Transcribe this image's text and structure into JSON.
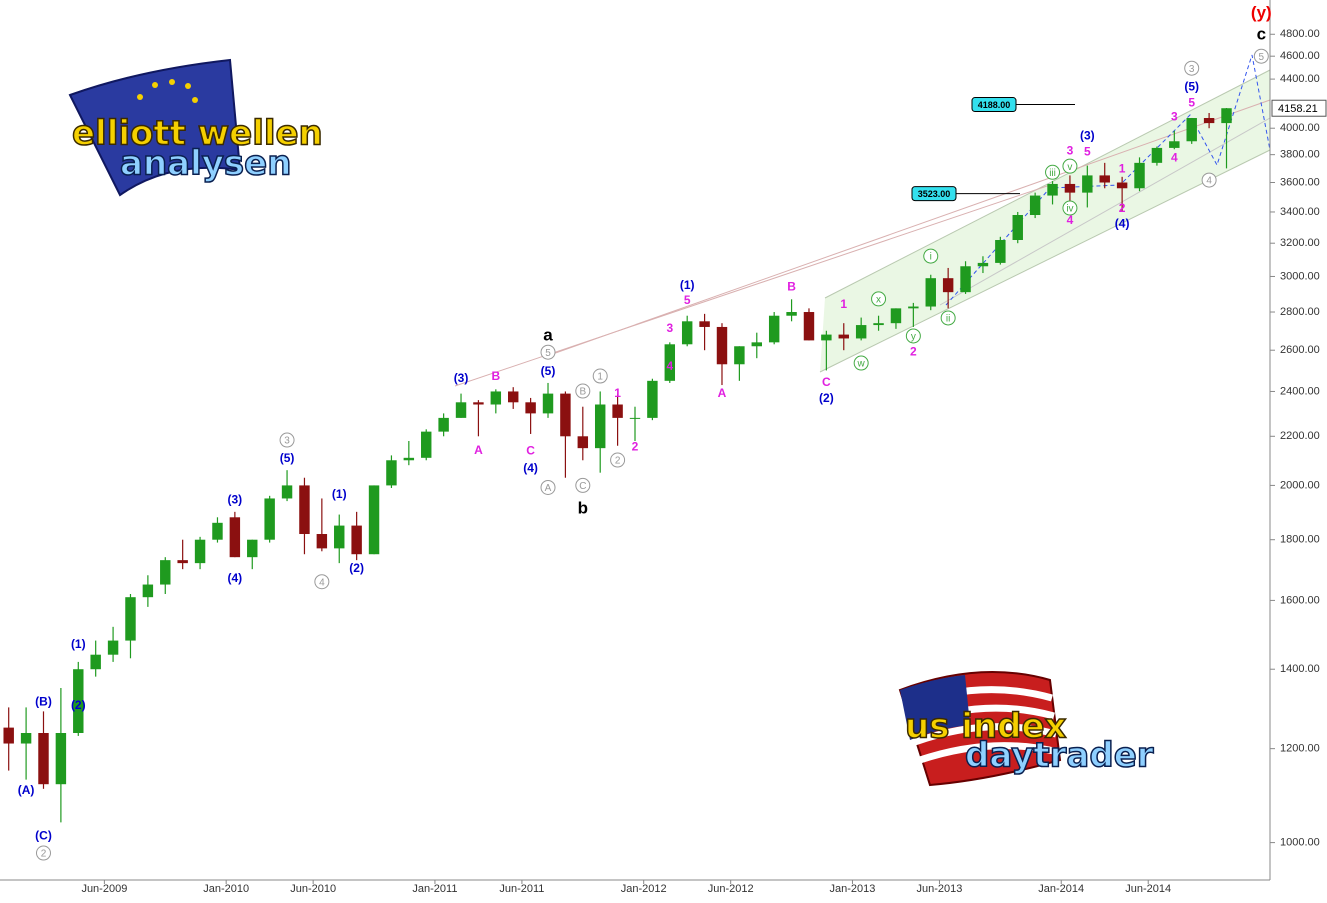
{
  "chart_data": {
    "type": "candlestick",
    "log_scale": true,
    "up_color": "#1f9a1f",
    "down_color": "#8b1010",
    "xlim": [
      "2008-12",
      "2015-01"
    ],
    "ylim": [
      930,
      5130
    ],
    "xticks": [
      {
        "value": "2009-06",
        "label": "Jun-2009"
      },
      {
        "value": "2010-01",
        "label": "Jan-2010"
      },
      {
        "value": "2010-06",
        "label": "Jun-2010"
      },
      {
        "value": "2011-01",
        "label": "Jan-2011"
      },
      {
        "value": "2011-06",
        "label": "Jun-2011"
      },
      {
        "value": "2012-01",
        "label": "Jan-2012"
      },
      {
        "value": "2012-06",
        "label": "Jun-2012"
      },
      {
        "value": "2013-01",
        "label": "Jan-2013"
      },
      {
        "value": "2013-06",
        "label": "Jun-2013"
      },
      {
        "value": "2014-01",
        "label": "Jan-2014"
      },
      {
        "value": "2014-06",
        "label": "Jun-2014"
      }
    ],
    "yticks": [
      {
        "value": 1000,
        "label": "1000.00"
      },
      {
        "value": 1200,
        "label": "1200.00"
      },
      {
        "value": 1400,
        "label": "1400.00"
      },
      {
        "value": 1600,
        "label": "1600.00"
      },
      {
        "value": 1800,
        "label": "1800.00"
      },
      {
        "value": 2000,
        "label": "2000.00"
      },
      {
        "value": 2200,
        "label": "2200.00"
      },
      {
        "value": 2400,
        "label": "2400.00"
      },
      {
        "value": 2600,
        "label": "2600.00"
      },
      {
        "value": 2800,
        "label": "2800.00"
      },
      {
        "value": 3000,
        "label": "3000.00"
      },
      {
        "value": 3200,
        "label": "3200.00"
      },
      {
        "value": 3400,
        "label": "3400.00"
      },
      {
        "value": 3600,
        "label": "3600.00"
      },
      {
        "value": 3800,
        "label": "3800.00"
      },
      {
        "value": 4000,
        "label": "4000.00"
      },
      {
        "value": 4400,
        "label": "4400.00"
      },
      {
        "value": 4600,
        "label": "4600.00"
      },
      {
        "value": 4800,
        "label": "4800.00"
      }
    ],
    "x": [
      "2008-12",
      "2009-01",
      "2009-02",
      "2009-03",
      "2009-04",
      "2009-05",
      "2009-06",
      "2009-07",
      "2009-08",
      "2009-09",
      "2009-10",
      "2009-11",
      "2009-12",
      "2010-01",
      "2010-02",
      "2010-03",
      "2010-04",
      "2010-05",
      "2010-06",
      "2010-07",
      "2010-08",
      "2010-09",
      "2010-10",
      "2010-11",
      "2010-12",
      "2011-01",
      "2011-02",
      "2011-03",
      "2011-04",
      "2011-05",
      "2011-06",
      "2011-07",
      "2011-08",
      "2011-09",
      "2011-10",
      "2011-11",
      "2011-12",
      "2012-01",
      "2012-02",
      "2012-03",
      "2012-04",
      "2012-05",
      "2012-06",
      "2012-07",
      "2012-08",
      "2012-09",
      "2012-10",
      "2012-11",
      "2012-12",
      "2013-01",
      "2013-02",
      "2013-03",
      "2013-04",
      "2013-05",
      "2013-06",
      "2013-07",
      "2013-08",
      "2013-09",
      "2013-10",
      "2013-11",
      "2013-12",
      "2014-01",
      "2014-02",
      "2014-03",
      "2014-04",
      "2014-05",
      "2014-06",
      "2014-07",
      "2014-08",
      "2014-09",
      "2014-10"
    ],
    "open": [
      1250,
      1212,
      1237,
      1120,
      1237,
      1400,
      1440,
      1480,
      1610,
      1650,
      1730,
      1720,
      1800,
      1880,
      1740,
      1800,
      1950,
      2000,
      1820,
      1770,
      1850,
      1750,
      2000,
      2100,
      2110,
      2220,
      2280,
      2350,
      2340,
      2400,
      2350,
      2300,
      2390,
      2200,
      2150,
      2340,
      2280,
      2280,
      2450,
      2630,
      2750,
      2720,
      2530,
      2620,
      2640,
      2780,
      2800,
      2650,
      2680,
      2660,
      2730,
      2740,
      2820,
      2830,
      2990,
      2910,
      3060,
      3080,
      3220,
      3380,
      3510,
      3590,
      3530,
      3650,
      3600,
      3560,
      3740,
      3850,
      3900,
      4080,
      4040
    ],
    "high": [
      1300,
      1300,
      1290,
      1350,
      1420,
      1480,
      1520,
      1620,
      1680,
      1740,
      1800,
      1810,
      1880,
      1900,
      1800,
      1960,
      2060,
      2030,
      1950,
      1890,
      1900,
      2000,
      2120,
      2180,
      2230,
      2300,
      2390,
      2360,
      2410,
      2420,
      2370,
      2440,
      2400,
      2330,
      2400,
      2390,
      2330,
      2460,
      2640,
      2780,
      2790,
      2740,
      2620,
      2690,
      2800,
      2870,
      2820,
      2700,
      2740,
      2770,
      2780,
      2820,
      2850,
      3010,
      3050,
      3090,
      3120,
      3240,
      3400,
      3530,
      3610,
      3650,
      3720,
      3740,
      3640,
      3780,
      3860,
      3980,
      4080,
      4120,
      4160
    ],
    "low": [
      1150,
      1130,
      1110,
      1040,
      1230,
      1380,
      1420,
      1430,
      1580,
      1620,
      1700,
      1700,
      1790,
      1740,
      1700,
      1790,
      1940,
      1750,
      1760,
      1720,
      1730,
      1750,
      1990,
      2080,
      2100,
      2200,
      2280,
      2200,
      2300,
      2320,
      2210,
      2280,
      2030,
      2100,
      2050,
      2160,
      2180,
      2270,
      2440,
      2620,
      2600,
      2430,
      2450,
      2560,
      2630,
      2750,
      2650,
      2500,
      2600,
      2650,
      2700,
      2710,
      2720,
      2810,
      2820,
      2900,
      3020,
      3070,
      3200,
      3360,
      3450,
      3460,
      3430,
      3560,
      3400,
      3540,
      3720,
      3840,
      3880,
      4000,
      3700
    ],
    "close": [
      1212,
      1237,
      1120,
      1237,
      1400,
      1440,
      1480,
      1610,
      1650,
      1730,
      1720,
      1800,
      1860,
      1740,
      1800,
      1950,
      2000,
      1820,
      1770,
      1850,
      1750,
      2000,
      2100,
      2110,
      2220,
      2280,
      2350,
      2340,
      2400,
      2350,
      2300,
      2390,
      2200,
      2150,
      2340,
      2280,
      2280,
      2450,
      2630,
      2750,
      2720,
      2530,
      2620,
      2640,
      2780,
      2800,
      2650,
      2680,
      2660,
      2730,
      2740,
      2820,
      2830,
      2990,
      2910,
      3060,
      3080,
      3220,
      3380,
      3510,
      3590,
      3530,
      3650,
      3600,
      3560,
      3740,
      3850,
      3900,
      4080,
      4040,
      4158.21
    ],
    "last_price": 4158.21,
    "levels": [
      {
        "value": 4188,
        "label": "4188.00"
      },
      {
        "value": 3523,
        "label": "3523.00"
      }
    ],
    "annotations": [
      {
        "text": "(A)",
        "x": "2009-01",
        "y": 1108,
        "color": "#0000cc"
      },
      {
        "text": "(B)",
        "x": "2009-02",
        "y": 1315,
        "color": "#0000cc"
      },
      {
        "text": "(C)",
        "x": "2009-02",
        "y": 1014,
        "color": "#0000cc"
      },
      {
        "text": "2",
        "x": "2009-02",
        "y": 980,
        "color": "#999999",
        "circled": true
      },
      {
        "text": "(1)",
        "x": "2009-04",
        "y": 1471,
        "color": "#0000cc"
      },
      {
        "text": "(2)",
        "x": "2009-04",
        "y": 1307,
        "color": "#0000cc"
      },
      {
        "text": "(3)",
        "x": "2010-01",
        "y": 1946,
        "color": "#0000cc"
      },
      {
        "text": "(4)",
        "x": "2010-01",
        "y": 1671,
        "color": "#0000cc"
      },
      {
        "text": "(5)",
        "x": "2010-04",
        "y": 2109,
        "color": "#0000cc"
      },
      {
        "text": "3",
        "x": "2010-04",
        "y": 2184,
        "color": "#999999",
        "circled": true
      },
      {
        "text": "4",
        "x": "2010-06",
        "y": 1659,
        "color": "#999999",
        "circled": true
      },
      {
        "text": "(1)",
        "x": "2010-07",
        "y": 1967,
        "color": "#0000cc"
      },
      {
        "text": "(2)",
        "x": "2010-08",
        "y": 1705,
        "color": "#0000cc"
      },
      {
        "text": "(3)",
        "x": "2011-02",
        "y": 2464,
        "color": "#0000cc"
      },
      {
        "text": "A",
        "x": "2011-03",
        "y": 2142,
        "color": "#e020e0"
      },
      {
        "text": "B",
        "x": "2011-04",
        "y": 2473,
        "color": "#e020e0"
      },
      {
        "text": "C",
        "x": "2011-06",
        "y": 2140,
        "color": "#e020e0"
      },
      {
        "text": "(4)",
        "x": "2011-06",
        "y": 2069,
        "color": "#0000cc"
      },
      {
        "text": "(5)",
        "x": "2011-07",
        "y": 2497,
        "color": "#0000cc"
      },
      {
        "text": "5",
        "x": "2011-07",
        "y": 2590,
        "color": "#999999",
        "circled": true
      },
      {
        "text": "a",
        "x": "2011-07",
        "y": 2678,
        "color": "#000000",
        "big": true
      },
      {
        "text": "A",
        "x": "2011-07",
        "y": 1992,
        "color": "#999999",
        "circled": true
      },
      {
        "text": "B",
        "x": "2011-09",
        "y": 2402,
        "color": "#999999",
        "circled": true
      },
      {
        "text": "C",
        "x": "2011-09",
        "y": 2000,
        "color": "#999999",
        "circled": true
      },
      {
        "text": "b",
        "x": "2011-09",
        "y": 1915,
        "color": "#000000",
        "big": true
      },
      {
        "text": "1",
        "x": "2011-10",
        "y": 2473,
        "color": "#999999",
        "circled": true
      },
      {
        "text": "2",
        "x": "2011-11",
        "y": 2101,
        "color": "#999999",
        "circled": true
      },
      {
        "text": "1",
        "x": "2011-11",
        "y": 2393,
        "color": "#e020e0"
      },
      {
        "text": "2",
        "x": "2011-12",
        "y": 2158,
        "color": "#e020e0"
      },
      {
        "text": "3",
        "x": "2012-02",
        "y": 2715,
        "color": "#e020e0"
      },
      {
        "text": "4",
        "x": "2012-02",
        "y": 2522,
        "color": "#e020e0"
      },
      {
        "text": "5",
        "x": "2012-03",
        "y": 2866,
        "color": "#e020e0"
      },
      {
        "text": "(1)",
        "x": "2012-03",
        "y": 2951,
        "color": "#0000cc"
      },
      {
        "text": "A",
        "x": "2012-05",
        "y": 2393,
        "color": "#e020e0"
      },
      {
        "text": "B",
        "x": "2012-09",
        "y": 2944,
        "color": "#e020e0"
      },
      {
        "text": "C",
        "x": "2012-11",
        "y": 2445,
        "color": "#e020e0"
      },
      {
        "text": "(2)",
        "x": "2012-11",
        "y": 2371,
        "color": "#0000cc"
      },
      {
        "text": "1",
        "x": "2012-12",
        "y": 2844,
        "color": "#e020e0"
      },
      {
        "text": "w",
        "x": "2013-01",
        "y": 2536,
        "color": "#44aa44",
        "circled": true
      },
      {
        "text": "x",
        "x": "2013-02",
        "y": 2872,
        "color": "#44aa44",
        "circled": true
      },
      {
        "text": "y",
        "x": "2013-04",
        "y": 2673,
        "color": "#44aa44",
        "circled": true
      },
      {
        "text": "2",
        "x": "2013-04",
        "y": 2595,
        "color": "#e020e0"
      },
      {
        "text": "i",
        "x": "2013-05",
        "y": 3121,
        "color": "#44aa44",
        "circled": true
      },
      {
        "text": "ii",
        "x": "2013-06",
        "y": 2768,
        "color": "#44aa44",
        "circled": true
      },
      {
        "text": "iii",
        "x": "2013-12",
        "y": 3672,
        "color": "#44aa44",
        "circled": true
      },
      {
        "text": "iv",
        "x": "2014-01",
        "y": 3426,
        "color": "#44aa44",
        "circled": true
      },
      {
        "text": "v",
        "x": "2014-01",
        "y": 3716,
        "color": "#44aa44",
        "circled": true
      },
      {
        "text": "3",
        "x": "2014-01",
        "y": 3833,
        "color": "#e020e0"
      },
      {
        "text": "4",
        "x": "2014-01",
        "y": 3347,
        "color": "#e020e0"
      },
      {
        "text": "5",
        "x": "2014-02",
        "y": 3826,
        "color": "#e020e0"
      },
      {
        "text": "(3)",
        "x": "2014-02",
        "y": 3946,
        "color": "#0000cc"
      },
      {
        "text": "1",
        "x": "2014-04",
        "y": 3702,
        "color": "#e020e0"
      },
      {
        "text": "2",
        "x": "2014-04",
        "y": 3426,
        "color": "#e020e0"
      },
      {
        "text": "(4)",
        "x": "2014-04",
        "y": 3327,
        "color": "#0000cc"
      },
      {
        "text": "3",
        "x": "2014-07",
        "y": 4094,
        "color": "#e020e0"
      },
      {
        "text": "4",
        "x": "2014-07",
        "y": 3781,
        "color": "#e020e0"
      },
      {
        "text": "5",
        "x": "2014-08",
        "y": 4207,
        "color": "#e020e0"
      },
      {
        "text": "(5)",
        "x": "2014-08",
        "y": 4340,
        "color": "#0000cc"
      },
      {
        "text": "3",
        "x": "2014-08",
        "y": 4494,
        "color": "#999999",
        "circled": true
      },
      {
        "text": "4",
        "x": "2014-09",
        "y": 3617,
        "color": "#999999",
        "circled": true
      },
      {
        "text": "5",
        "x": "2014-12",
        "y": 4600,
        "color": "#999999",
        "circled": true
      },
      {
        "text": "c",
        "x": "2014-12",
        "y": 4800,
        "color": "#000000",
        "big": true
      },
      {
        "text": "(y)",
        "x": "2014-12",
        "y": 5009,
        "color": "#ee0000",
        "big": true
      }
    ],
    "logos": [
      [
        "elliott wellen",
        "analysen"
      ],
      [
        "us index",
        "daytrader"
      ]
    ]
  }
}
